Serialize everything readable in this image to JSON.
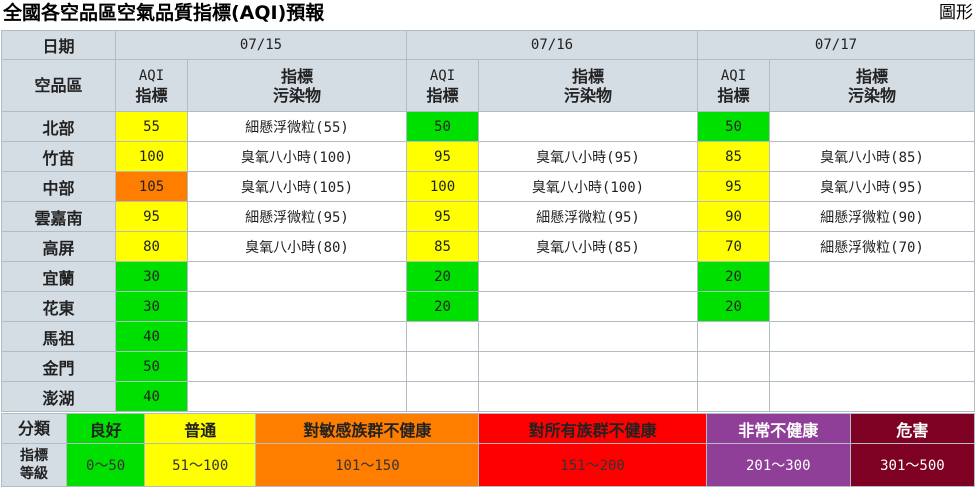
{
  "title": "全國各空品區空氣品質指標(AQI)預報",
  "graph_link": "圖形",
  "header": {
    "date_label": "日期",
    "region_label": "空品區",
    "aqi_label_line1": "AQI",
    "aqi_label_line2": "指標",
    "pollutant_label_line1": "指標",
    "pollutant_label_line2": "污染物",
    "dates": [
      "07/15",
      "07/16",
      "07/17"
    ]
  },
  "colors": {
    "good": "#00e000",
    "moderate": "#ffff00",
    "usg": "#ff7e00",
    "unhealthy": "#ff0000",
    "very_unhealthy": "#8f3f97",
    "hazardous": "#7e0023",
    "header_bg": "#d5dde4"
  },
  "rows": [
    {
      "region": "北部",
      "days": [
        {
          "aqi": "55",
          "level": "moderate",
          "pollutant": "細懸浮微粒(55)"
        },
        {
          "aqi": "50",
          "level": "good",
          "pollutant": ""
        },
        {
          "aqi": "50",
          "level": "good",
          "pollutant": ""
        }
      ]
    },
    {
      "region": "竹苗",
      "days": [
        {
          "aqi": "100",
          "level": "moderate",
          "pollutant": "臭氧八小時(100)"
        },
        {
          "aqi": "95",
          "level": "moderate",
          "pollutant": "臭氧八小時(95)"
        },
        {
          "aqi": "85",
          "level": "moderate",
          "pollutant": "臭氧八小時(85)"
        }
      ]
    },
    {
      "region": "中部",
      "days": [
        {
          "aqi": "105",
          "level": "usg",
          "pollutant": "臭氧八小時(105)"
        },
        {
          "aqi": "100",
          "level": "moderate",
          "pollutant": "臭氧八小時(100)"
        },
        {
          "aqi": "95",
          "level": "moderate",
          "pollutant": "臭氧八小時(95)"
        }
      ]
    },
    {
      "region": "雲嘉南",
      "days": [
        {
          "aqi": "95",
          "level": "moderate",
          "pollutant": "細懸浮微粒(95)"
        },
        {
          "aqi": "95",
          "level": "moderate",
          "pollutant": "細懸浮微粒(95)"
        },
        {
          "aqi": "90",
          "level": "moderate",
          "pollutant": "細懸浮微粒(90)"
        }
      ]
    },
    {
      "region": "高屏",
      "days": [
        {
          "aqi": "80",
          "level": "moderate",
          "pollutant": "臭氧八小時(80)"
        },
        {
          "aqi": "85",
          "level": "moderate",
          "pollutant": "臭氧八小時(85)"
        },
        {
          "aqi": "70",
          "level": "moderate",
          "pollutant": "細懸浮微粒(70)"
        }
      ]
    },
    {
      "region": "宜蘭",
      "days": [
        {
          "aqi": "30",
          "level": "good",
          "pollutant": ""
        },
        {
          "aqi": "20",
          "level": "good",
          "pollutant": ""
        },
        {
          "aqi": "20",
          "level": "good",
          "pollutant": ""
        }
      ]
    },
    {
      "region": "花東",
      "days": [
        {
          "aqi": "30",
          "level": "good",
          "pollutant": ""
        },
        {
          "aqi": "20",
          "level": "good",
          "pollutant": ""
        },
        {
          "aqi": "20",
          "level": "good",
          "pollutant": ""
        }
      ]
    },
    {
      "region": "馬祖",
      "days": [
        {
          "aqi": "40",
          "level": "good",
          "pollutant": ""
        },
        {
          "aqi": "",
          "level": "none",
          "pollutant": ""
        },
        {
          "aqi": "",
          "level": "none",
          "pollutant": ""
        }
      ]
    },
    {
      "region": "金門",
      "days": [
        {
          "aqi": "50",
          "level": "good",
          "pollutant": ""
        },
        {
          "aqi": "",
          "level": "none",
          "pollutant": ""
        },
        {
          "aqi": "",
          "level": "none",
          "pollutant": ""
        }
      ]
    },
    {
      "region": "澎湖",
      "days": [
        {
          "aqi": "40",
          "level": "good",
          "pollutant": ""
        },
        {
          "aqi": "",
          "level": "none",
          "pollutant": ""
        },
        {
          "aqi": "",
          "level": "none",
          "pollutant": ""
        }
      ]
    }
  ],
  "legend": {
    "category_label": "分類",
    "grade_label_line1": "指標",
    "grade_label_line2": "等級",
    "levels": [
      {
        "name": "良好",
        "range": "0～50",
        "level": "good",
        "text_color": "#333333"
      },
      {
        "name": "普通",
        "range": "51～100",
        "level": "moderate",
        "text_color": "#333333"
      },
      {
        "name": "對敏感族群不健康",
        "range": "101～150",
        "level": "usg",
        "text_color": "#333333"
      },
      {
        "name": "對所有族群不健康",
        "range": "151～200",
        "level": "unhealthy",
        "text_color": "#333333"
      },
      {
        "name": "非常不健康",
        "range": "201～300",
        "level": "very_unhealthy",
        "text_color": "#ffffff"
      },
      {
        "name": "危害",
        "range": "301～500",
        "level": "hazardous",
        "text_color": "#ffffff"
      }
    ]
  }
}
